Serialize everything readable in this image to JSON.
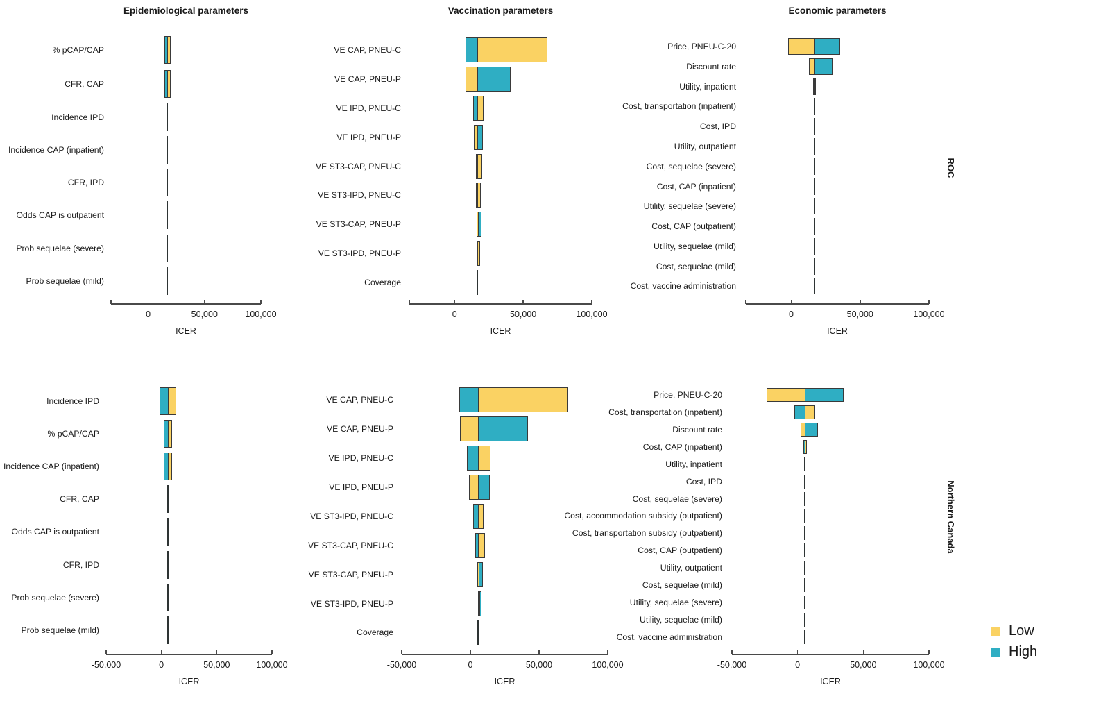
{
  "figure": {
    "row_group_labels": [
      "ROC",
      "Northern Canada"
    ],
    "legend": {
      "low_label": "Low",
      "high_label": "High"
    },
    "colors": {
      "low": "#FAD263",
      "high": "#2FAEC3",
      "border": "#3A3A3A",
      "axis": "#4A4A4A",
      "text": "#1A1A1A"
    }
  },
  "chart_data": [
    {
      "id": "roc-epi",
      "type": "bar",
      "orientation": "horizontal-tornado",
      "group": "ROC",
      "title": "Epidemiological parameters",
      "xlabel": "ICER",
      "x_min": -33000,
      "x_max": 100000,
      "base_icer": 16800,
      "ticks": [
        {
          "v": 0,
          "label": "0"
        },
        {
          "v": 50000,
          "label": "50,000"
        },
        {
          "v": 100000,
          "label": "100,000"
        }
      ],
      "rows": [
        {
          "label": "% pCAP/CAP",
          "high": [
            14200,
            16800
          ],
          "low": [
            16800,
            20000
          ]
        },
        {
          "label": "CFR, CAP",
          "high": [
            14300,
            16800
          ],
          "low": [
            16800,
            19900
          ]
        },
        {
          "label": "Incidence IPD",
          "high": [
            16500,
            16800
          ],
          "low": [
            16800,
            17100
          ]
        },
        {
          "label": "Incidence CAP (inpatient)",
          "high": [
            16650,
            16800
          ],
          "low": [
            16800,
            16950
          ]
        },
        {
          "label": "CFR, IPD",
          "high": [
            16700,
            16800
          ],
          "low": [
            16800,
            16900
          ]
        },
        {
          "label": "Odds CAP is outpatient",
          "high": [
            16700,
            16800
          ],
          "low": [
            16800,
            16900
          ]
        },
        {
          "label": "Prob sequelae (severe)",
          "high": [
            16700,
            16800
          ],
          "low": [
            16800,
            16900
          ]
        },
        {
          "label": "Prob sequelae (mild)",
          "high": [
            16700,
            16800
          ],
          "low": [
            16800,
            16900
          ]
        }
      ]
    },
    {
      "id": "roc-vax",
      "type": "bar",
      "orientation": "horizontal-tornado",
      "group": "ROC",
      "title": "Vaccination parameters",
      "xlabel": "ICER",
      "x_min": -33000,
      "x_max": 100000,
      "base_icer": 16800,
      "ticks": [
        {
          "v": 0,
          "label": "0"
        },
        {
          "v": 50000,
          "label": "50,000"
        },
        {
          "v": 100000,
          "label": "100,000"
        }
      ],
      "rows": [
        {
          "label": "VE CAP, PNEU-C",
          "high": [
            8000,
            16800
          ],
          "low": [
            16800,
            67500
          ]
        },
        {
          "label": "VE CAP, PNEU-P",
          "low": [
            8000,
            16800
          ],
          "high": [
            16800,
            41000
          ]
        },
        {
          "label": "VE IPD, PNEU-C",
          "high": [
            13400,
            16800
          ],
          "low": [
            16800,
            21200
          ]
        },
        {
          "label": "VE IPD, PNEU-P",
          "low": [
            13900,
            16800
          ],
          "high": [
            16800,
            20500
          ]
        },
        {
          "label": "VE ST3-CAP, PNEU-C",
          "high": [
            15700,
            16800
          ],
          "low": [
            16800,
            20000
          ]
        },
        {
          "label": "VE ST3-IPD, PNEU-C",
          "high": [
            15400,
            16800
          ],
          "low": [
            16800,
            19200
          ]
        },
        {
          "label": "VE ST3-CAP, PNEU-P",
          "low": [
            16300,
            16800
          ],
          "high": [
            16800,
            19700
          ]
        },
        {
          "label": "VE ST3-IPD, PNEU-P",
          "low": [
            16600,
            16800
          ],
          "high": [
            16800,
            18400
          ]
        },
        {
          "label": "Coverage",
          "low": [
            16750,
            16800
          ],
          "high": [
            16800,
            16850
          ]
        }
      ]
    },
    {
      "id": "roc-eco",
      "type": "bar",
      "orientation": "horizontal-tornado",
      "group": "ROC",
      "title": "Economic parameters",
      "xlabel": "ICER",
      "x_min": -33000,
      "x_max": 100000,
      "base_icer": 16800,
      "ticks": [
        {
          "v": 0,
          "label": "0"
        },
        {
          "v": 50000,
          "label": "50,000"
        },
        {
          "v": 100000,
          "label": "100,000"
        }
      ],
      "rows": [
        {
          "label": "Price, PNEU-C-20",
          "low": [
            -2200,
            16800
          ],
          "high": [
            16800,
            35400
          ]
        },
        {
          "label": "Discount rate",
          "low": [
            12600,
            16800
          ],
          "high": [
            16800,
            29800
          ]
        },
        {
          "label": "Utility, inpatient",
          "low": [
            16100,
            16800
          ],
          "high": [
            16800,
            17700
          ]
        },
        {
          "label": "Cost, transportation (inpatient)",
          "low": [
            16600,
            16800
          ],
          "high": [
            16800,
            17000
          ]
        },
        {
          "label": "Cost, IPD",
          "low": [
            16600,
            16800
          ],
          "high": [
            16800,
            17000
          ]
        },
        {
          "label": "Utility, outpatient",
          "low": [
            16700,
            16800
          ],
          "high": [
            16800,
            16900
          ]
        },
        {
          "label": "Cost, sequelae (severe)",
          "low": [
            16700,
            16800
          ],
          "high": [
            16800,
            16900
          ]
        },
        {
          "label": "Cost, CAP (inpatient)",
          "low": [
            16700,
            16800
          ],
          "high": [
            16800,
            16900
          ]
        },
        {
          "label": "Utility, sequelae (severe)",
          "low": [
            16700,
            16800
          ],
          "high": [
            16800,
            16900
          ]
        },
        {
          "label": "Cost, CAP (outpatient)",
          "low": [
            16700,
            16800
          ],
          "high": [
            16800,
            16900
          ]
        },
        {
          "label": "Utility, sequelae (mild)",
          "low": [
            16700,
            16800
          ],
          "high": [
            16800,
            16900
          ]
        },
        {
          "label": "Cost, sequelae (mild)",
          "low": [
            16700,
            16800
          ],
          "high": [
            16800,
            16900
          ]
        },
        {
          "label": "Cost, vaccine administration",
          "low": [
            16700,
            16800
          ],
          "high": [
            16800,
            16900
          ]
        }
      ]
    },
    {
      "id": "nc-epi",
      "type": "bar",
      "orientation": "horizontal-tornado",
      "group": "Northern Canada",
      "title": "",
      "xlabel": "ICER",
      "x_min": -50000,
      "x_max": 100000,
      "base_icer": 5700,
      "ticks": [
        {
          "v": -50000,
          "label": "-50,000"
        },
        {
          "v": 0,
          "label": "0"
        },
        {
          "v": 50000,
          "label": "50,000"
        },
        {
          "v": 100000,
          "label": "100,000"
        }
      ],
      "rows": [
        {
          "label": "Incidence IPD",
          "high": [
            -1900,
            5700
          ],
          "low": [
            5700,
            13500
          ]
        },
        {
          "label": "% pCAP/CAP",
          "high": [
            1900,
            5700
          ],
          "low": [
            5700,
            9800
          ]
        },
        {
          "label": "Incidence CAP (inpatient)",
          "high": [
            2300,
            5700
          ],
          "low": [
            5700,
            9400
          ]
        },
        {
          "label": "CFR, CAP",
          "high": [
            5300,
            5700
          ],
          "low": [
            5700,
            6100
          ]
        },
        {
          "label": "Odds CAP is outpatient",
          "high": [
            5400,
            5700
          ],
          "low": [
            5700,
            6000
          ]
        },
        {
          "label": "CFR, IPD",
          "high": [
            5550,
            5700
          ],
          "low": [
            5700,
            5850
          ]
        },
        {
          "label": "Prob sequelae (severe)",
          "high": [
            5600,
            5700
          ],
          "low": [
            5700,
            5800
          ]
        },
        {
          "label": "Prob sequelae (mild)",
          "high": [
            5600,
            5700
          ],
          "low": [
            5700,
            5800
          ]
        }
      ]
    },
    {
      "id": "nc-vax",
      "type": "bar",
      "orientation": "horizontal-tornado",
      "group": "Northern Canada",
      "title": "",
      "xlabel": "ICER",
      "x_min": -50000,
      "x_max": 100000,
      "base_icer": 5700,
      "ticks": [
        {
          "v": -50000,
          "label": "-50,000"
        },
        {
          "v": 0,
          "label": "0"
        },
        {
          "v": 50000,
          "label": "50,000"
        },
        {
          "v": 100000,
          "label": "100,000"
        }
      ],
      "rows": [
        {
          "label": "VE CAP, PNEU-C",
          "high": [
            -8300,
            5700
          ],
          "low": [
            5700,
            71400
          ]
        },
        {
          "label": "VE CAP, PNEU-P",
          "low": [
            -7500,
            5700
          ],
          "high": [
            5700,
            41900
          ]
        },
        {
          "label": "VE IPD, PNEU-C",
          "high": [
            -2300,
            5700
          ],
          "low": [
            5700,
            14400
          ]
        },
        {
          "label": "VE IPD, PNEU-P",
          "low": [
            -1000,
            5700
          ],
          "high": [
            5700,
            13900
          ]
        },
        {
          "label": "VE ST3-IPD, PNEU-C",
          "high": [
            2000,
            5700
          ],
          "low": [
            5700,
            9700
          ]
        },
        {
          "label": "VE ST3-CAP, PNEU-C",
          "high": [
            3500,
            5700
          ],
          "low": [
            5700,
            10500
          ]
        },
        {
          "label": "VE ST3-CAP, PNEU-P",
          "low": [
            5200,
            5700
          ],
          "high": [
            5700,
            9200
          ]
        },
        {
          "label": "VE ST3-IPD, PNEU-P",
          "low": [
            5400,
            5700
          ],
          "high": [
            5700,
            8000
          ]
        },
        {
          "label": "Coverage",
          "low": [
            5650,
            5700
          ],
          "high": [
            5700,
            5750
          ]
        }
      ]
    },
    {
      "id": "nc-eco",
      "type": "bar",
      "orientation": "horizontal-tornado",
      "group": "Northern Canada",
      "title": "",
      "xlabel": "ICER",
      "x_min": -50000,
      "x_max": 100000,
      "base_icer": 5700,
      "ticks": [
        {
          "v": -50000,
          "label": "-50,000"
        },
        {
          "v": 0,
          "label": "0"
        },
        {
          "v": 50000,
          "label": "50,000"
        },
        {
          "v": 100000,
          "label": "100,000"
        }
      ],
      "rows": [
        {
          "label": "Price, PNEU-C-20",
          "low": [
            -23800,
            5700
          ],
          "high": [
            5700,
            35300
          ]
        },
        {
          "label": "Cost, transportation (inpatient)",
          "high": [
            -2600,
            5700
          ],
          "low": [
            5700,
            13300
          ]
        },
        {
          "label": "Discount rate",
          "low": [
            2500,
            5700
          ],
          "high": [
            5700,
            15600
          ]
        },
        {
          "label": "Cost, CAP (inpatient)",
          "high": [
            4600,
            5700
          ],
          "low": [
            5700,
            7200
          ]
        },
        {
          "label": "Utility, inpatient",
          "low": [
            5000,
            5700
          ],
          "high": [
            5700,
            6400
          ]
        },
        {
          "label": "Cost, IPD",
          "low": [
            5100,
            5700
          ],
          "high": [
            5700,
            6300
          ]
        },
        {
          "label": "Cost, sequelae (severe)",
          "low": [
            5600,
            5700
          ],
          "high": [
            5700,
            5800
          ]
        },
        {
          "label": "Cost, accommodation subsidy (outpatient)",
          "low": [
            5600,
            5700
          ],
          "high": [
            5700,
            5800
          ]
        },
        {
          "label": "Cost, transportation subsidy (outpatient)",
          "low": [
            5600,
            5700
          ],
          "high": [
            5700,
            5800
          ]
        },
        {
          "label": "Cost, CAP (outpatient)",
          "low": [
            5600,
            5700
          ],
          "high": [
            5700,
            5800
          ]
        },
        {
          "label": "Utility, outpatient",
          "low": [
            5600,
            5700
          ],
          "high": [
            5700,
            5800
          ]
        },
        {
          "label": "Cost, sequelae (mild)",
          "low": [
            5600,
            5700
          ],
          "high": [
            5700,
            5800
          ]
        },
        {
          "label": "Utility, sequelae (severe)",
          "low": [
            5600,
            5700
          ],
          "high": [
            5700,
            5800
          ]
        },
        {
          "label": "Utility, sequelae (mild)",
          "low": [
            5600,
            5700
          ],
          "high": [
            5700,
            5800
          ]
        },
        {
          "label": "Cost, vaccine administration",
          "low": [
            5600,
            5700
          ],
          "high": [
            5700,
            5800
          ]
        }
      ]
    }
  ]
}
